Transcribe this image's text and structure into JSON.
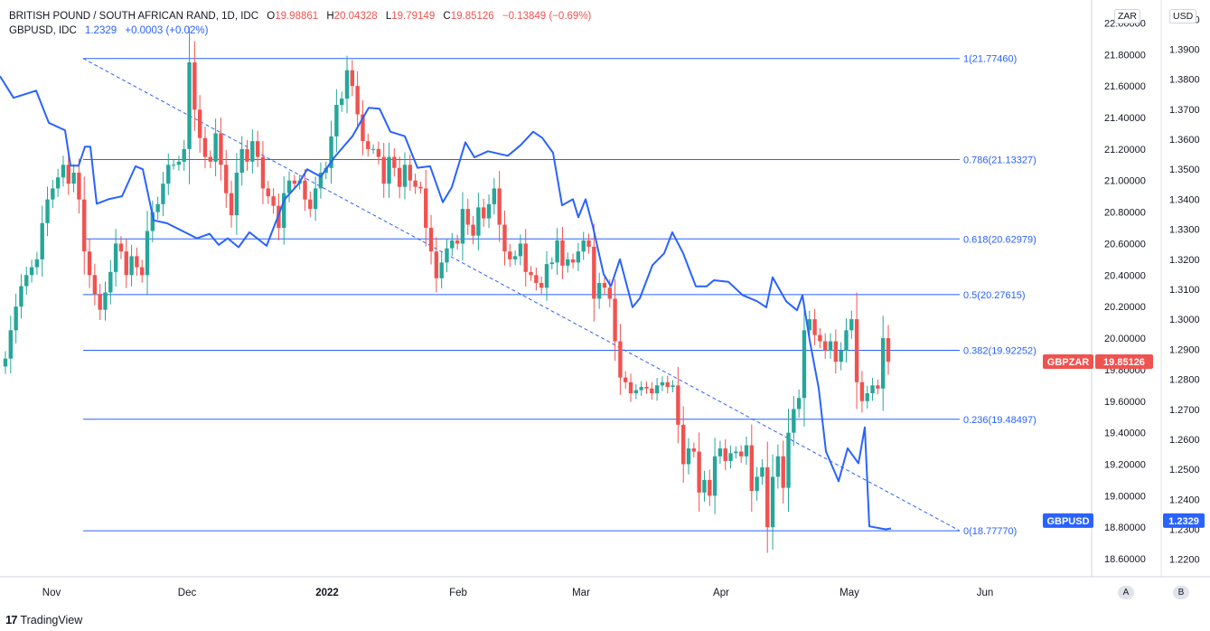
{
  "header": {
    "symbol": "BRITISH POUND / SOUTH AFRICAN RAND, 1D, IDC",
    "o_label": "O",
    "o": "19.98861",
    "h_label": "H",
    "h": "20.04328",
    "l_label": "L",
    "l": "19.79149",
    "c_label": "C",
    "c": "19.85126",
    "change": "−0.13849 (−0.69%)",
    "overlay_symbol": "GBPUSD, IDC",
    "overlay_value": "1.2329",
    "overlay_change": "+0.0003 (+0.02%)"
  },
  "currency_left": "ZAR",
  "currency_right": "USD",
  "scale_buttons": {
    "a": "A",
    "b": "B"
  },
  "brand": "TradingView",
  "colors": {
    "up": "#26a69a",
    "down": "#ef5350",
    "line": "#2962ff",
    "fib": "#2962ff"
  },
  "chart_data": {
    "type": "candlestick",
    "x_ticks": [
      "Nov",
      "Dec",
      "2022",
      "Feb",
      "Mar",
      "Apr",
      "May",
      "Jun"
    ],
    "left_axis": {
      "ticks": [
        "22.00000",
        "21.80000",
        "21.60000",
        "21.40000",
        "21.20000",
        "21.00000",
        "20.80000",
        "20.60000",
        "20.40000",
        "20.20000",
        "20.00000",
        "19.80000",
        "19.60000",
        "19.40000",
        "19.20000",
        "19.00000",
        "18.80000",
        "18.60000"
      ],
      "range": [
        18.52,
        22.1
      ]
    },
    "right_axis": {
      "ticks": [
        "1.4000",
        "1.3900",
        "1.3800",
        "1.3700",
        "1.3600",
        "1.3500",
        "1.3400",
        "1.3300",
        "1.3200",
        "1.3100",
        "1.3000",
        "1.2900",
        "1.2800",
        "1.2700",
        "1.2600",
        "1.2500",
        "1.2400",
        "1.2300",
        "1.2200"
      ],
      "range": [
        1.216,
        1.404
      ]
    },
    "fib_levels": [
      {
        "label": "1(21.77460)",
        "value": 21.7746
      },
      {
        "label": "0.786(21.13327)",
        "value": 21.13327
      },
      {
        "label": "0.618(20.62979)",
        "value": 20.62979
      },
      {
        "label": "0.5(20.27615)",
        "value": 20.27615
      },
      {
        "label": "0.382(19.92252)",
        "value": 19.92252
      },
      {
        "label": "0.236(19.48497)",
        "value": 19.48497
      },
      {
        "label": "0(18.77770)",
        "value": 18.7777
      }
    ],
    "price_tags": [
      {
        "name": "GBPZAR",
        "value": "19.85126"
      },
      {
        "name": "GBPUSD",
        "value": "1.2329"
      }
    ],
    "gbpzar_close": [
      19.87,
      20.05,
      20.2,
      20.33,
      20.4,
      20.45,
      20.5,
      20.73,
      20.88,
      20.95,
      21.02,
      21.1,
      20.98,
      21.05,
      20.88,
      20.55,
      20.4,
      20.28,
      20.18,
      20.29,
      20.42,
      20.6,
      20.55,
      20.4,
      20.52,
      20.45,
      20.4,
      20.68,
      20.8,
      20.85,
      20.98,
      21.1,
      21.1,
      21.12,
      21.2,
      21.75,
      21.45,
      21.27,
      21.15,
      21.12,
      21.3,
      21.1,
      20.92,
      20.78,
      21.05,
      21.2,
      21.12,
      21.25,
      21.15,
      20.95,
      20.9,
      20.84,
      20.7,
      20.92,
      21.0,
      20.98,
      21.0,
      20.88,
      20.82,
      20.95,
      21.05,
      21.08,
      21.28,
      21.48,
      21.52,
      21.7,
      21.6,
      21.42,
      21.25,
      21.2,
      21.2,
      21.15,
      20.98,
      21.15,
      21.08,
      20.96,
      21.1,
      21.0,
      20.96,
      20.95,
      20.7,
      20.55,
      20.38,
      20.48,
      20.57,
      20.62,
      20.6,
      20.82,
      20.72,
      20.65,
      20.83,
      20.76,
      20.85,
      20.95,
      20.72,
      20.55,
      20.5,
      20.52,
      20.6,
      20.42,
      20.4,
      20.35,
      20.32,
      20.47,
      20.48,
      20.62,
      20.46,
      20.5,
      20.48,
      20.55,
      20.62,
      20.58,
      20.25,
      20.35,
      20.32,
      20.25,
      19.98,
      19.75,
      19.72,
      19.65,
      19.67,
      19.69,
      19.68,
      19.65,
      19.7,
      19.72,
      19.69,
      19.7,
      19.45,
      19.2,
      19.3,
      19.28,
      19.02,
      19.1,
      19.0,
      19.25,
      19.3,
      19.22,
      19.27,
      19.28,
      19.25,
      19.32,
      19.03,
      19.12,
      19.18,
      18.8,
      19.12,
      19.25,
      19.05,
      19.4,
      19.55,
      19.62,
      20.05,
      20.12,
      20.02,
      19.98,
      19.92,
      19.98,
      19.85,
      19.92,
      20.05,
      20.12,
      19.72,
      19.6,
      19.65,
      19.7,
      19.68,
      20.0,
      19.85
    ],
    "gbpusd_line": [
      [
        0,
        1.381
      ],
      [
        15,
        1.3738
      ],
      [
        40,
        1.3762
      ],
      [
        54,
        1.3655
      ],
      [
        72,
        1.363
      ],
      [
        78,
        1.3512
      ],
      [
        87,
        1.3512
      ],
      [
        94,
        1.3575
      ],
      [
        100,
        1.3575
      ],
      [
        107,
        1.3385
      ],
      [
        120,
        1.34
      ],
      [
        135,
        1.341
      ],
      [
        150,
        1.351
      ],
      [
        158,
        1.35
      ],
      [
        170,
        1.333
      ],
      [
        185,
        1.332
      ],
      [
        218,
        1.327
      ],
      [
        232,
        1.3285
      ],
      [
        242,
        1.3248
      ],
      [
        252,
        1.327
      ],
      [
        264,
        1.324
      ],
      [
        276,
        1.329
      ],
      [
        295,
        1.3245
      ],
      [
        315,
        1.34
      ],
      [
        330,
        1.345
      ],
      [
        340,
        1.35
      ],
      [
        355,
        1.3475
      ],
      [
        370,
        1.354
      ],
      [
        390,
        1.361
      ],
      [
        408,
        1.3705
      ],
      [
        420,
        1.3702
      ],
      [
        432,
        1.3625
      ],
      [
        448,
        1.361
      ],
      [
        462,
        1.3505
      ],
      [
        476,
        1.351
      ],
      [
        490,
        1.339
      ],
      [
        500,
        1.344
      ],
      [
        515,
        1.359
      ],
      [
        525,
        1.354
      ],
      [
        540,
        1.356
      ],
      [
        562,
        1.3545
      ],
      [
        576,
        1.358
      ],
      [
        590,
        1.3625
      ],
      [
        600,
        1.3605
      ],
      [
        612,
        1.3555
      ],
      [
        622,
        1.338
      ],
      [
        634,
        1.34
      ],
      [
        640,
        1.334
      ],
      [
        648,
        1.34
      ],
      [
        656,
        1.331
      ],
      [
        668,
        1.315
      ],
      [
        676,
        1.311
      ],
      [
        686,
        1.32
      ],
      [
        700,
        1.304
      ],
      [
        708,
        1.307
      ],
      [
        722,
        1.318
      ],
      [
        735,
        1.322
      ],
      [
        744,
        1.329
      ],
      [
        756,
        1.322
      ],
      [
        770,
        1.311
      ],
      [
        782,
        1.311
      ],
      [
        790,
        1.313
      ],
      [
        806,
        1.3125
      ],
      [
        822,
        1.308
      ],
      [
        838,
        1.306
      ],
      [
        848,
        1.304
      ],
      [
        855,
        1.314
      ],
      [
        870,
        1.306
      ],
      [
        882,
        1.303
      ],
      [
        888,
        1.308
      ],
      [
        896,
        1.293
      ],
      [
        906,
        1.277
      ],
      [
        914,
        1.256
      ],
      [
        928,
        1.246
      ],
      [
        938,
        1.257
      ],
      [
        950,
        1.252
      ],
      [
        957,
        1.264
      ],
      [
        962,
        1.231
      ],
      [
        980,
        1.23
      ],
      [
        986,
        1.2303
      ]
    ],
    "trendline": {
      "from": [
        92,
        21.7746
      ],
      "to": [
        1062,
        18.7777
      ],
      "style": "dashed"
    }
  }
}
